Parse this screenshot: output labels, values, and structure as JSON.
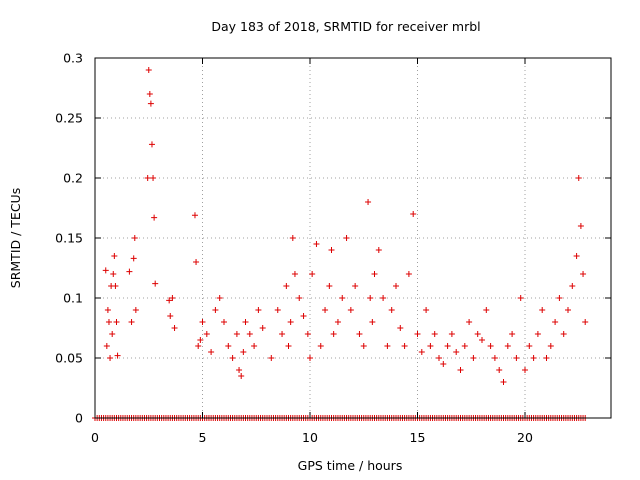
{
  "chart_data": {
    "type": "scatter",
    "title": "Day 183 of 2018, SRMTID for receiver mrbl",
    "xlabel": "GPS time / hours",
    "ylabel": "SRMTID / TECUs",
    "xlim": [
      0,
      24
    ],
    "ylim": [
      0,
      0.3
    ],
    "x_ticks": [
      0,
      5,
      10,
      15,
      20
    ],
    "x_tick_labels": [
      "0",
      "5",
      "10",
      "15",
      "20"
    ],
    "y_ticks": [
      0,
      0.05,
      0.1,
      0.15,
      0.2,
      0.25,
      0.3
    ],
    "y_tick_labels": [
      "0",
      "0.05",
      "0.1",
      "0.15",
      "0.2",
      "0.25",
      "0.3"
    ],
    "grid": true,
    "marker": "+",
    "color": "#dd0000",
    "series": [
      {
        "name": "SRMTID",
        "x": [
          0.5,
          0.55,
          0.6,
          0.65,
          0.7,
          0.75,
          0.8,
          0.85,
          0.9,
          0.95,
          1.0,
          1.05,
          1.6,
          1.7,
          1.8,
          1.85,
          1.9,
          2.45,
          2.5,
          2.55,
          2.6,
          2.65,
          2.7,
          2.75,
          2.8,
          3.45,
          3.5,
          3.6,
          3.7,
          4.65,
          4.7,
          4.8,
          4.9,
          5.0,
          5.2,
          5.4,
          5.6,
          5.8,
          6.0,
          6.2,
          6.4,
          6.6,
          6.7,
          6.8,
          6.9,
          7.0,
          7.2,
          7.4,
          7.6,
          7.8,
          8.2,
          8.5,
          8.7,
          8.9,
          9.0,
          9.1,
          9.2,
          9.3,
          9.5,
          9.7,
          9.9,
          10.0,
          10.1,
          10.3,
          10.5,
          10.7,
          10.9,
          11.0,
          11.1,
          11.3,
          11.5,
          11.7,
          11.9,
          12.1,
          12.3,
          12.5,
          12.7,
          12.8,
          12.9,
          13.0,
          13.2,
          13.4,
          13.6,
          13.8,
          14.0,
          14.2,
          14.4,
          14.6,
          14.8,
          15.0,
          15.2,
          15.4,
          15.6,
          15.8,
          16.0,
          16.2,
          16.4,
          16.6,
          16.8,
          17.0,
          17.2,
          17.4,
          17.6,
          17.8,
          18.0,
          18.2,
          18.4,
          18.6,
          18.8,
          19.0,
          19.2,
          19.4,
          19.6,
          19.8,
          20.0,
          20.2,
          20.4,
          20.6,
          20.8,
          21.0,
          21.2,
          21.4,
          21.6,
          21.8,
          22.0,
          22.2,
          22.4,
          22.5,
          22.6,
          22.7,
          22.8
        ],
        "y": [
          0.123,
          0.06,
          0.09,
          0.08,
          0.05,
          0.11,
          0.07,
          0.12,
          0.135,
          0.11,
          0.08,
          0.052,
          0.122,
          0.08,
          0.133,
          0.15,
          0.09,
          0.2,
          0.29,
          0.27,
          0.262,
          0.228,
          0.2,
          0.167,
          0.112,
          0.098,
          0.085,
          0.1,
          0.075,
          0.169,
          0.13,
          0.06,
          0.065,
          0.08,
          0.07,
          0.055,
          0.09,
          0.1,
          0.08,
          0.06,
          0.05,
          0.07,
          0.04,
          0.035,
          0.055,
          0.08,
          0.07,
          0.06,
          0.09,
          0.075,
          0.05,
          0.09,
          0.07,
          0.11,
          0.06,
          0.08,
          0.15,
          0.12,
          0.1,
          0.085,
          0.07,
          0.05,
          0.12,
          0.145,
          0.06,
          0.09,
          0.11,
          0.14,
          0.07,
          0.08,
          0.1,
          0.15,
          0.09,
          0.11,
          0.07,
          0.06,
          0.18,
          0.1,
          0.08,
          0.12,
          0.14,
          0.1,
          0.06,
          0.09,
          0.11,
          0.075,
          0.06,
          0.12,
          0.17,
          0.07,
          0.055,
          0.09,
          0.06,
          0.07,
          0.05,
          0.045,
          0.06,
          0.07,
          0.055,
          0.04,
          0.06,
          0.08,
          0.05,
          0.07,
          0.065,
          0.09,
          0.06,
          0.05,
          0.04,
          0.03,
          0.06,
          0.07,
          0.05,
          0.1,
          0.04,
          0.06,
          0.05,
          0.07,
          0.09,
          0.05,
          0.06,
          0.08,
          0.1,
          0.07,
          0.09,
          0.11,
          0.135,
          0.2,
          0.16,
          0.12,
          0.08
        ],
        "baseline_x_start": 0,
        "baseline_x_end": 22.8,
        "baseline_y": 0
      }
    ]
  }
}
